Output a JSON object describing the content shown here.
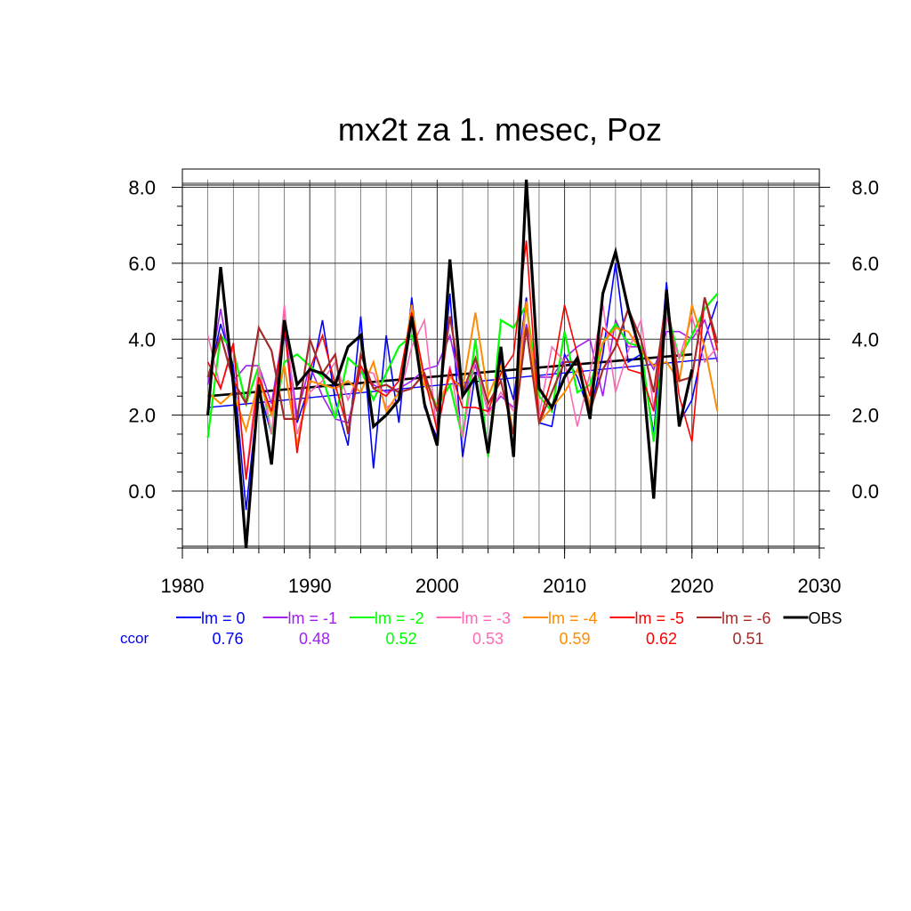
{
  "chart_data": {
    "type": "line",
    "title": "mx2t za 1. mesec, Poz",
    "xlabel": "",
    "ylabel": "",
    "xlim": [
      1980,
      2030
    ],
    "ylim": [
      -1.5,
      8.2
    ],
    "x_ticks": [
      1980,
      1990,
      2000,
      2010,
      2020,
      2030
    ],
    "x_tick_labels": [
      "1980",
      "1990",
      "2000",
      "2010",
      "2020",
      "2030"
    ],
    "y_ticks": [
      0,
      2,
      4,
      6,
      8
    ],
    "y_tick_labels": [
      "0.0",
      "2.0",
      "4.0",
      "6.0",
      "8.0"
    ],
    "grid": true,
    "ccor_label": "ccor",
    "series": [
      {
        "name": "lm = 0",
        "color": "#0000ff",
        "ccor": "0.76",
        "width": 1.6,
        "x": [
          1982,
          1983,
          1984,
          1985,
          1986,
          1987,
          1988,
          1989,
          1990,
          1991,
          1992,
          1993,
          1994,
          1995,
          1996,
          1997,
          1998,
          1999,
          2000,
          2001,
          2002,
          2003,
          2004,
          2005,
          2006,
          2007,
          2008,
          2009,
          2010,
          2011,
          2012,
          2013,
          2014,
          2015,
          2016,
          2017,
          2018,
          2019,
          2020,
          2021,
          2022
        ],
        "values": [
          2.8,
          4.4,
          3.3,
          -0.5,
          2.7,
          1.5,
          4.2,
          1.8,
          2.8,
          4.5,
          2.4,
          1.2,
          4.6,
          0.6,
          4.1,
          1.8,
          5.1,
          2.2,
          1.4,
          5.2,
          0.9,
          3.1,
          1.0,
          3.5,
          2.4,
          5.1,
          1.8,
          1.7,
          3.6,
          3.0,
          2.0,
          3.6,
          6.0,
          3.4,
          3.6,
          1.5,
          5.5,
          1.8,
          2.4,
          4.0,
          5.0
        ],
        "trend": {
          "x": [
            1982,
            2022
          ],
          "values": [
            2.2,
            3.5
          ]
        }
      },
      {
        "name": "lm = -1",
        "color": "#a020f0",
        "ccor": "0.48",
        "width": 1.6,
        "x": [
          1982,
          1983,
          1984,
          1985,
          1986,
          1987,
          1988,
          1989,
          1990,
          1991,
          1992,
          1993,
          1994,
          1995,
          1996,
          1997,
          1998,
          1999,
          2000,
          2001,
          2002,
          2003,
          2004,
          2005,
          2006,
          2007,
          2008,
          2009,
          2010,
          2011,
          2012,
          2013,
          2014,
          2015,
          2016,
          2017,
          2018,
          2019,
          2020,
          2021,
          2022
        ],
        "values": [
          2.8,
          4.8,
          2.9,
          3.3,
          3.3,
          2.3,
          4.4,
          2.0,
          3.3,
          2.5,
          1.9,
          1.8,
          3.2,
          2.8,
          2.6,
          2.7,
          2.9,
          3.2,
          3.3,
          4.1,
          2.5,
          3.3,
          2.1,
          2.5,
          2.2,
          4.4,
          3.0,
          3.0,
          3.5,
          3.8,
          4.0,
          2.5,
          4.5,
          3.8,
          3.8,
          3.2,
          4.2,
          4.2,
          4.0,
          4.5,
          3.4
        ]
      },
      {
        "name": "lm = -2",
        "color": "#00ff00",
        "ccor": "0.52",
        "width": 2.2,
        "x": [
          1982,
          1983,
          1984,
          1985,
          1986,
          1987,
          1988,
          1989,
          1990,
          1991,
          1992,
          1993,
          1994,
          1995,
          1996,
          1997,
          1998,
          1999,
          2000,
          2001,
          2002,
          2003,
          2004,
          2005,
          2006,
          2007,
          2008,
          2009,
          2010,
          2011,
          2012,
          2013,
          2014,
          2015,
          2016,
          2017,
          2018,
          2019,
          2020,
          2021,
          2022
        ],
        "values": [
          1.4,
          4.1,
          3.7,
          2.3,
          3.3,
          1.5,
          3.4,
          3.6,
          3.3,
          3.0,
          1.9,
          3.5,
          3.2,
          2.4,
          3.1,
          3.8,
          4.1,
          3.0,
          2.2,
          2.8,
          1.4,
          4.0,
          0.9,
          4.5,
          4.3,
          4.9,
          2.5,
          2.1,
          4.2,
          2.6,
          2.8,
          3.9,
          4.4,
          3.9,
          3.8,
          1.3,
          4.8,
          3.5,
          4.1,
          4.8,
          5.2
        ]
      },
      {
        "name": "lm = -3",
        "color": "#ff69b4",
        "ccor": "0.53",
        "width": 1.6,
        "x": [
          1982,
          1983,
          1984,
          1985,
          1986,
          1987,
          1988,
          1989,
          1990,
          1991,
          1992,
          1993,
          1994,
          1995,
          1996,
          1997,
          1998,
          1999,
          2000,
          2001,
          2002,
          2003,
          2004,
          2005,
          2006,
          2007,
          2008,
          2009,
          2010,
          2011,
          2012,
          2013,
          2014,
          2015,
          2016,
          2017,
          2018,
          2019,
          2020,
          2021,
          2022
        ],
        "values": [
          4.1,
          2.7,
          3.8,
          0.4,
          3.3,
          1.5,
          4.9,
          1.5,
          2.6,
          2.9,
          3.4,
          2.4,
          3.2,
          3.1,
          2.2,
          2.4,
          3.8,
          4.5,
          1.5,
          3.3,
          1.4,
          3.5,
          2.0,
          2.6,
          2.1,
          5.0,
          2.0,
          3.8,
          3.4,
          1.7,
          3.1,
          4.9,
          2.6,
          3.7,
          4.5,
          2.2,
          4.6,
          3.5,
          4.6,
          3.4,
          3.8
        ]
      },
      {
        "name": "lm = -4",
        "color": "#ff8c00",
        "ccor": "0.59",
        "width": 2.0,
        "x": [
          1982,
          1983,
          1984,
          1985,
          1986,
          1987,
          1988,
          1989,
          1990,
          1991,
          1992,
          1993,
          1994,
          1995,
          1996,
          1997,
          1998,
          1999,
          2000,
          2001,
          2002,
          2003,
          2004,
          2005,
          2006,
          2007,
          2008,
          2009,
          2010,
          2011,
          2012,
          2013,
          2014,
          2015,
          2016,
          2017,
          2018,
          2019,
          2020,
          2021,
          2022
        ],
        "values": [
          2.6,
          2.3,
          2.6,
          1.6,
          2.9,
          2.0,
          3.3,
          1.2,
          2.9,
          2.8,
          2.7,
          2.9,
          2.6,
          3.4,
          2.1,
          2.6,
          4.9,
          2.8,
          2.2,
          3.0,
          2.7,
          4.7,
          2.5,
          3.3,
          1.5,
          5.0,
          1.8,
          2.2,
          2.6,
          3.2,
          2.3,
          3.9,
          4.3,
          4.2,
          3.7,
          3.3,
          3.4,
          2.9,
          4.9,
          3.8,
          2.1
        ]
      },
      {
        "name": "lm = -5",
        "color": "#ff0000",
        "ccor": "0.62",
        "width": 1.6,
        "x": [
          1982,
          1983,
          1984,
          1985,
          1986,
          1987,
          1988,
          1989,
          1990,
          1991,
          1992,
          1993,
          1994,
          1995,
          1996,
          1997,
          1998,
          1999,
          2000,
          2001,
          2002,
          2003,
          2004,
          2005,
          2006,
          2007,
          2008,
          2009,
          2010,
          2011,
          2012,
          2013,
          2014,
          2015,
          2016,
          2017,
          2018,
          2019,
          2020,
          2021,
          2022
        ],
        "values": [
          3.4,
          2.7,
          3.9,
          0.3,
          3.0,
          2.1,
          4.4,
          1.0,
          3.2,
          4.1,
          2.8,
          1.6,
          3.3,
          2.7,
          2.5,
          2.9,
          4.7,
          3.0,
          1.6,
          3.2,
          2.2,
          2.2,
          2.1,
          3.1,
          3.6,
          6.6,
          1.8,
          3.0,
          4.9,
          3.6,
          2.5,
          4.3,
          4.0,
          3.2,
          3.1,
          2.1,
          5.0,
          2.5,
          1.3,
          5.1,
          3.7
        ]
      },
      {
        "name": "lm = -6",
        "color": "#a52a2a",
        "ccor": "0.51",
        "width": 2.2,
        "x": [
          1982,
          1983,
          1984,
          1985,
          1986,
          1987,
          1988,
          1989,
          1990,
          1991,
          1992,
          1993,
          1994,
          1995,
          1996,
          1997,
          1998,
          1999,
          2000,
          2001,
          2002,
          2003,
          2004,
          2005,
          2006,
          2007,
          2008,
          2009,
          2010,
          2011,
          2012,
          2013,
          2014,
          2015,
          2016,
          2017,
          2018,
          2019,
          2020,
          2021,
          2022
        ],
        "values": [
          3.0,
          4.1,
          2.9,
          2.3,
          4.3,
          3.7,
          1.9,
          1.9,
          4.0,
          3.1,
          3.6,
          1.5,
          3.6,
          2.7,
          2.8,
          2.6,
          2.7,
          3.1,
          2.1,
          4.6,
          2.6,
          3.5,
          2.3,
          2.9,
          1.5,
          4.3,
          1.8,
          2.6,
          3.4,
          3.4,
          2.1,
          3.2,
          3.8,
          4.8,
          4.0,
          2.6,
          5.1,
          2.9,
          3.0,
          5.1,
          3.9
        ]
      },
      {
        "name": "OBS",
        "color": "#000000",
        "ccor": "",
        "width": 3.2,
        "x": [
          1982,
          1983,
          1984,
          1985,
          1986,
          1987,
          1988,
          1989,
          1990,
          1991,
          1992,
          1993,
          1994,
          1995,
          1996,
          1997,
          1998,
          1999,
          2000,
          2001,
          2002,
          2003,
          2004,
          2005,
          2006,
          2007,
          2008,
          2009,
          2010,
          2011,
          2012,
          2013,
          2014,
          2015,
          2016,
          2017,
          2018,
          2019,
          2020,
          2021,
          2022
        ],
        "values": [
          2.0,
          5.9,
          2.8,
          -1.5,
          2.8,
          0.7,
          4.5,
          2.8,
          3.2,
          3.1,
          2.8,
          3.8,
          4.1,
          1.7,
          2.0,
          2.4,
          4.6,
          2.3,
          1.2,
          6.1,
          2.5,
          3.0,
          1.0,
          3.8,
          0.9,
          8.2,
          2.7,
          2.2,
          3.0,
          3.5,
          1.9,
          5.2,
          6.3,
          4.8,
          3.6,
          -0.2,
          5.3,
          1.7,
          3.2,
          null,
          null
        ],
        "trend": {
          "x": [
            1982,
            2020
          ],
          "values": [
            2.5,
            3.6
          ]
        }
      }
    ]
  }
}
